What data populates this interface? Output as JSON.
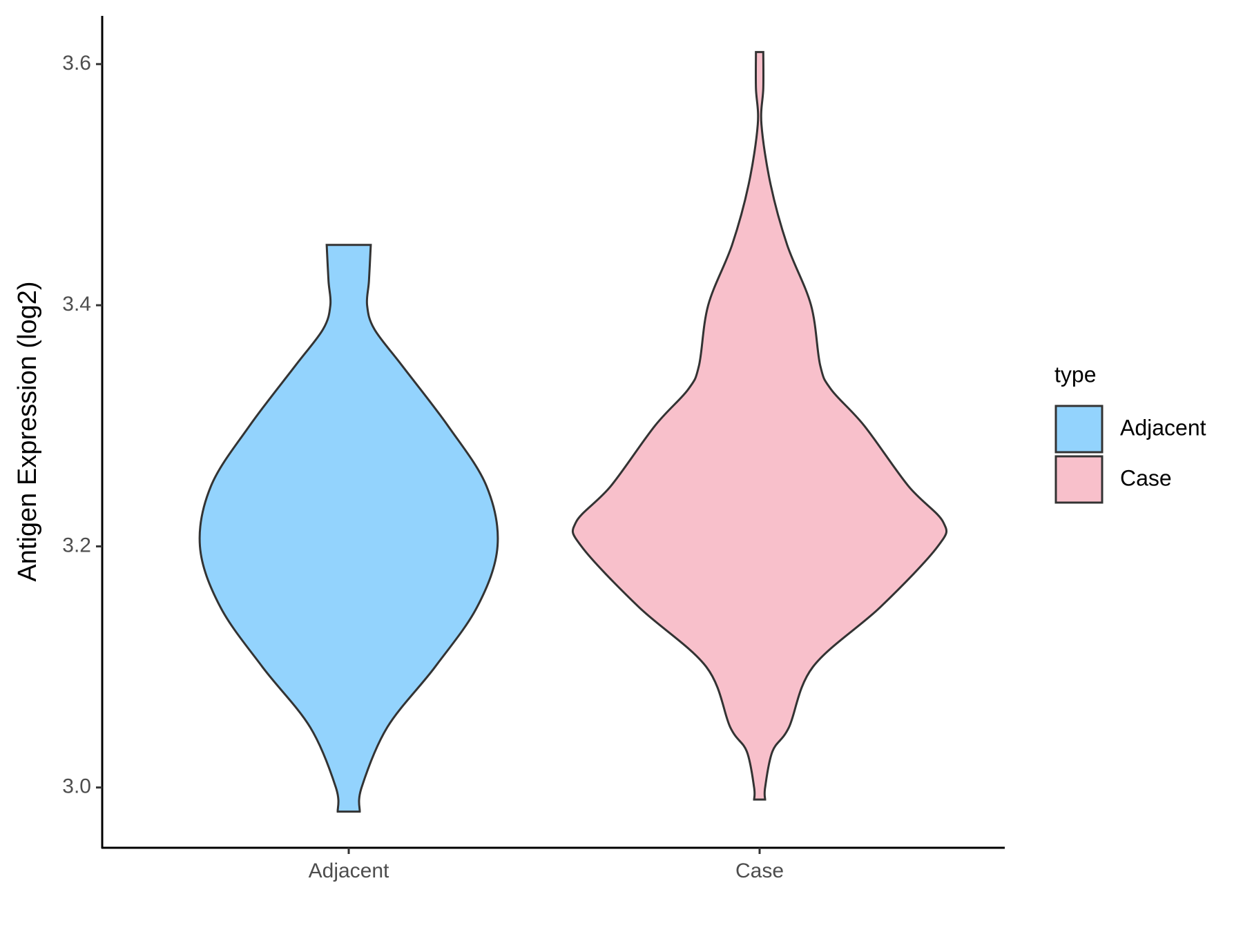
{
  "chart_data": {
    "type": "violin",
    "y_label": "Antigen Expression (log2)",
    "categories": [
      "Adjacent",
      "Case"
    ],
    "legend_title": "type",
    "legend_position": "right",
    "ylim": [
      2.95,
      3.64
    ],
    "yticks": [
      {
        "value": 3.0,
        "label": "3.0"
      },
      3.2,
      3.4,
      3.6
    ],
    "series": [
      {
        "name": "Adjacent",
        "color": "#93d3fd",
        "y": [
          2.98,
          3.0,
          3.05,
          3.1,
          3.15,
          3.2,
          3.25,
          3.3,
          3.35,
          3.38,
          3.4,
          3.42,
          3.45
        ],
        "density": [
          0.06,
          0.07,
          0.21,
          0.47,
          0.7,
          0.81,
          0.75,
          0.54,
          0.29,
          0.14,
          0.1,
          0.11,
          0.12
        ]
      },
      {
        "name": "Case",
        "color": "#f8c0cb",
        "y": [
          2.99,
          3.0,
          3.03,
          3.05,
          3.1,
          3.15,
          3.2,
          3.22,
          3.25,
          3.3,
          3.33,
          3.35,
          3.4,
          3.45,
          3.5,
          3.55,
          3.58,
          3.61
        ],
        "density": [
          0.03,
          0.03,
          0.07,
          0.16,
          0.29,
          0.66,
          0.97,
          1,
          0.81,
          0.57,
          0.39,
          0.33,
          0.28,
          0.15,
          0.06,
          0.01,
          0.02,
          0.02
        ]
      }
    ]
  }
}
